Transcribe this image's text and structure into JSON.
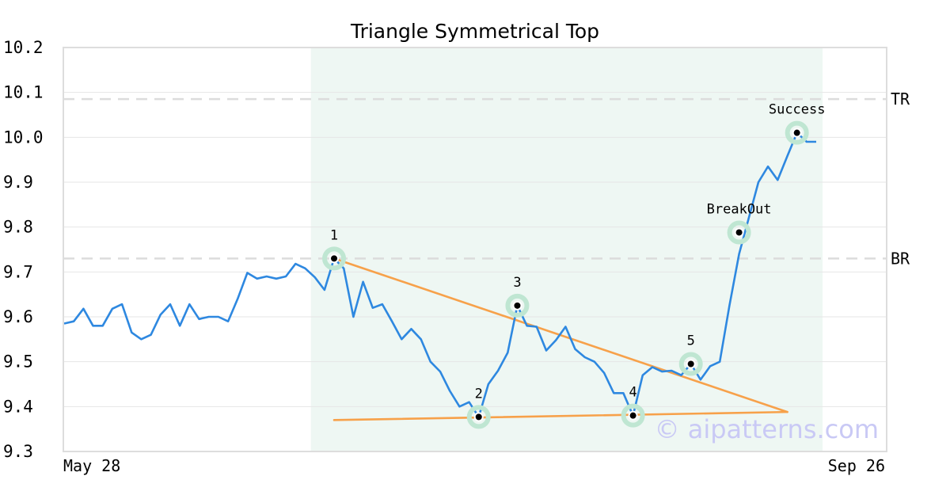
{
  "chart_data": {
    "type": "line",
    "title": "Triangle Symmetrical Top",
    "x_start_label": "May 28",
    "x_end_label": "Sep 26",
    "ylim": [
      9.3,
      10.2
    ],
    "yticks": [
      "10.2",
      "10.1",
      "10.0",
      "9.9",
      "9.8",
      "9.7",
      "9.6",
      "9.5",
      "9.4",
      "9.3"
    ],
    "ytick_values": [
      10.2,
      10.1,
      10.0,
      9.9,
      9.8,
      9.7,
      9.6,
      9.5,
      9.4,
      9.3
    ],
    "grid": true,
    "line_color": "#2e88e0",
    "trendline_color": "#f7a14a",
    "highlight_color": "#eef7f3",
    "marker_ring_color": "#bfe6d2",
    "series": [
      {
        "values": [
          9.585,
          9.59,
          9.618,
          9.58,
          9.58,
          9.618,
          9.628,
          9.565,
          9.55,
          9.56,
          9.605,
          9.628,
          9.58,
          9.628,
          9.595,
          9.6,
          9.6,
          9.59,
          9.64,
          9.698,
          9.685,
          9.69,
          9.685,
          9.69,
          9.718,
          9.708,
          9.688,
          9.66,
          9.73,
          9.708,
          9.6,
          9.678,
          9.62,
          9.628,
          9.59,
          9.55,
          9.573,
          9.55,
          9.5,
          9.478,
          9.435,
          9.4,
          9.41,
          9.377,
          9.45,
          9.48,
          9.52,
          9.625,
          9.58,
          9.578,
          9.525,
          9.548,
          9.578,
          9.528,
          9.51,
          9.5,
          9.475,
          9.43,
          9.43,
          9.38,
          9.47,
          9.488,
          9.478,
          9.48,
          9.47,
          9.495,
          9.46,
          9.49,
          9.5,
          9.625,
          9.74,
          9.82,
          9.9,
          9.935,
          9.905,
          9.958,
          10.01,
          9.99,
          9.99
        ]
      }
    ],
    "highlight_range": {
      "start_index": 26,
      "end_index": 78
    },
    "reference_lines": [
      {
        "label": "TR",
        "value": 10.085
      },
      {
        "label": "BR",
        "value": 9.73
      }
    ],
    "trendlines": [
      {
        "from": {
          "index": 28,
          "value": 9.73
        },
        "to": {
          "index": 75,
          "value": 9.388
        }
      },
      {
        "from": {
          "index": 28,
          "value": 9.37
        },
        "to": {
          "index": 75,
          "value": 9.388
        }
      }
    ],
    "annotations": [
      {
        "label": "1",
        "index": 28,
        "value": 9.73,
        "label_pos": "above"
      },
      {
        "label": "2",
        "index": 43,
        "value": 9.377,
        "label_pos": "above"
      },
      {
        "label": "3",
        "index": 47,
        "value": 9.625,
        "label_pos": "above"
      },
      {
        "label": "4",
        "index": 59,
        "value": 9.38,
        "label_pos": "above"
      },
      {
        "label": "5",
        "index": 65,
        "value": 9.495,
        "label_pos": "above"
      },
      {
        "label": "BreakOut",
        "index": 70,
        "value": 9.788,
        "label_pos": "above"
      },
      {
        "label": "Success",
        "index": 76,
        "value": 10.01,
        "label_pos": "above"
      }
    ]
  },
  "watermark": "© aipatterns.com"
}
